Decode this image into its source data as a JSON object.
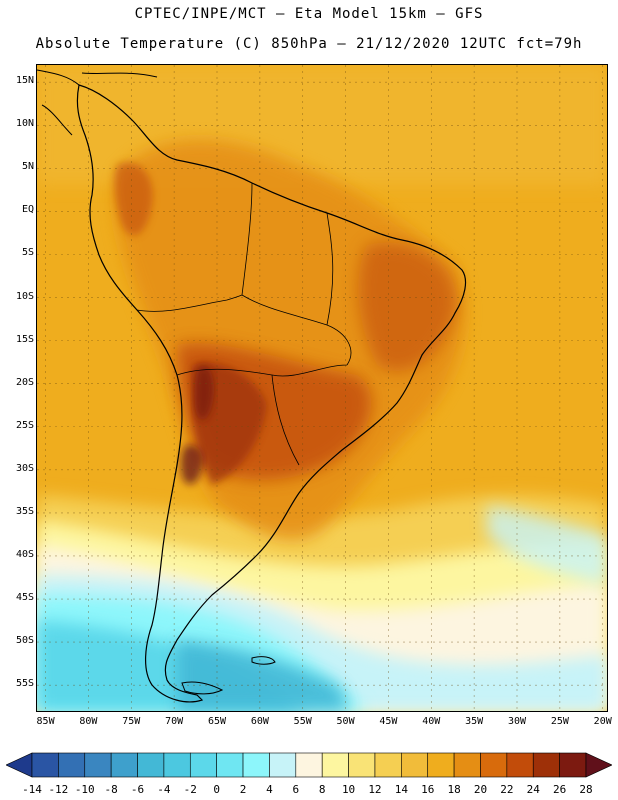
{
  "header": {
    "line1": "CPTEC/INPE/MCT –  Eta Model 15km – GFS",
    "line2": "Absolute Temperature (C) 850hPa – 21/12/2020 12UTC fct=79h"
  },
  "map": {
    "lat_labels": [
      "15N",
      "10N",
      "5N",
      "EQ",
      "5S",
      "10S",
      "15S",
      "20S",
      "25S",
      "30S",
      "35S",
      "40S",
      "45S",
      "50S",
      "55S"
    ],
    "lat_values": [
      15,
      10,
      5,
      0,
      -5,
      -10,
      -15,
      -20,
      -25,
      -30,
      -35,
      -40,
      -45,
      -50,
      -55
    ],
    "lon_labels": [
      "85W",
      "80W",
      "75W",
      "70W",
      "65W",
      "60W",
      "55W",
      "50W",
      "45W",
      "40W",
      "35W",
      "30W",
      "25W",
      "20W"
    ],
    "lon_values": [
      -85,
      -80,
      -75,
      -70,
      -65,
      -60,
      -55,
      -50,
      -45,
      -40,
      -35,
      -30,
      -25,
      -20
    ],
    "lon_range": [
      -86,
      -19.5
    ],
    "lat_range": [
      -58,
      17
    ],
    "background_color": "#efad1e"
  },
  "colorbar": {
    "labels": [
      "-14",
      "-12",
      "-10",
      "-8",
      "-6",
      "-4",
      "-2",
      "0",
      "2",
      "4",
      "6",
      "8",
      "10",
      "12",
      "14",
      "16",
      "18",
      "20",
      "22",
      "24",
      "26",
      "28"
    ],
    "colors": [
      "#1e3a8c",
      "#2a55a4",
      "#3370b4",
      "#3a86c0",
      "#3ea0cc",
      "#43b8d6",
      "#4cc8e0",
      "#5cd8ea",
      "#6fe6f2",
      "#8df6fb",
      "#c7f3f8",
      "#fdf5e0",
      "#fdf6a0",
      "#f9e376",
      "#f5cf52",
      "#f1bc3a",
      "#efad1e",
      "#e58e14",
      "#d86b0c",
      "#c24c0a",
      "#9e3008",
      "#7c1a10",
      "#60101a"
    ]
  }
}
